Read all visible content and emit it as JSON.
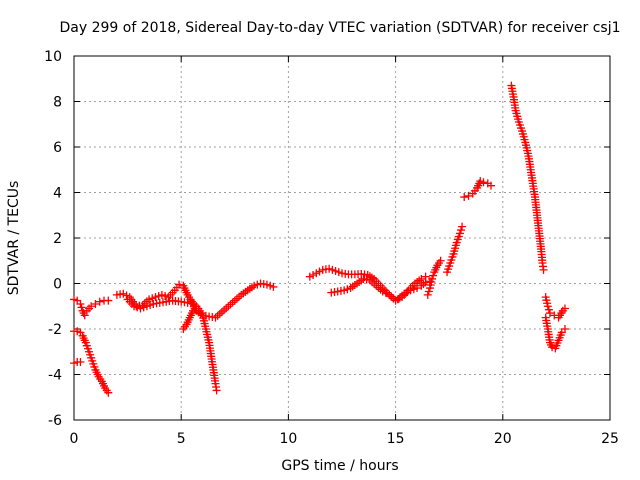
{
  "chart_data": {
    "type": "scatter",
    "title": "Day 299 of 2018, Sidereal Day-to-day VTEC variation (SDTVAR) for receiver csj1",
    "xlabel": "GPS time / hours",
    "ylabel": "SDTVAR / TECUs",
    "xlim": [
      0,
      25
    ],
    "ylim": [
      -6,
      10
    ],
    "xticks": [
      0,
      5,
      10,
      15,
      20,
      25
    ],
    "yticks": [
      -6,
      -4,
      -2,
      0,
      2,
      4,
      6,
      8,
      10
    ],
    "grid": true,
    "marker": "+",
    "color": "#ff0000",
    "series": [
      {
        "values": [
          [
            0.0,
            -0.7
          ],
          [
            0.15,
            -0.75
          ],
          [
            0.3,
            -0.9
          ],
          [
            0.4,
            -1.2
          ],
          [
            0.5,
            -1.4
          ]
        ]
      },
      {
        "values": [
          [
            0.0,
            -2.1
          ],
          [
            0.15,
            -2.1
          ],
          [
            0.3,
            -2.15
          ]
        ]
      },
      {
        "values": [
          [
            0.0,
            -3.5
          ],
          [
            0.15,
            -3.45
          ],
          [
            0.3,
            -3.45
          ]
        ]
      },
      {
        "values": [
          [
            0.4,
            -2.3
          ],
          [
            0.55,
            -2.6
          ],
          [
            0.7,
            -3.0
          ],
          [
            0.85,
            -3.4
          ],
          [
            1.0,
            -3.8
          ],
          [
            1.15,
            -4.1
          ],
          [
            1.3,
            -4.3
          ],
          [
            1.45,
            -4.6
          ],
          [
            1.6,
            -4.8
          ]
        ]
      },
      {
        "values": [
          [
            0.6,
            -1.2
          ],
          [
            0.8,
            -1.0
          ],
          [
            1.0,
            -0.9
          ],
          [
            1.2,
            -0.8
          ],
          [
            1.4,
            -0.75
          ],
          [
            1.6,
            -0.75
          ]
        ]
      },
      {
        "values": [
          [
            2.0,
            -0.5
          ],
          [
            2.3,
            -0.45
          ],
          [
            2.6,
            -0.6
          ],
          [
            2.9,
            -1.0
          ],
          [
            3.2,
            -0.95
          ],
          [
            3.5,
            -0.7
          ],
          [
            3.8,
            -0.6
          ],
          [
            4.1,
            -0.5
          ],
          [
            4.4,
            -0.6
          ],
          [
            4.7,
            -0.3
          ],
          [
            4.9,
            -0.05
          ],
          [
            5.1,
            -0.1
          ],
          [
            5.3,
            -0.5
          ],
          [
            5.5,
            -0.8
          ],
          [
            5.7,
            -1.2
          ],
          [
            6.0,
            -1.4
          ],
          [
            6.3,
            -1.45
          ],
          [
            6.6,
            -1.5
          ],
          [
            6.9,
            -1.25
          ],
          [
            7.2,
            -1.0
          ],
          [
            7.5,
            -0.75
          ],
          [
            7.8,
            -0.5
          ],
          [
            8.1,
            -0.3
          ],
          [
            8.4,
            -0.1
          ],
          [
            8.7,
            0.0
          ],
          [
            9.0,
            -0.05
          ],
          [
            9.3,
            -0.15
          ]
        ]
      },
      {
        "values": [
          [
            2.5,
            -0.7
          ],
          [
            2.8,
            -1.0
          ],
          [
            3.1,
            -1.1
          ],
          [
            3.4,
            -1.0
          ],
          [
            3.7,
            -0.9
          ],
          [
            4.0,
            -0.85
          ],
          [
            4.3,
            -0.8
          ],
          [
            4.6,
            -0.75
          ],
          [
            5.0,
            -0.8
          ],
          [
            5.3,
            -0.85
          ],
          [
            5.6,
            -0.9
          ],
          [
            5.8,
            -1.1
          ],
          [
            6.0,
            -1.4
          ],
          [
            6.15,
            -2.0
          ],
          [
            6.3,
            -2.6
          ],
          [
            6.4,
            -3.2
          ],
          [
            6.5,
            -3.8
          ],
          [
            6.6,
            -4.4
          ],
          [
            6.65,
            -4.7
          ]
        ]
      },
      {
        "values": [
          [
            5.1,
            -2.0
          ],
          [
            5.25,
            -1.8
          ],
          [
            5.4,
            -1.5
          ],
          [
            5.55,
            -1.2
          ],
          [
            5.7,
            -1.0
          ]
        ]
      },
      {
        "values": [
          [
            11.0,
            0.3
          ],
          [
            11.3,
            0.45
          ],
          [
            11.6,
            0.6
          ],
          [
            11.9,
            0.65
          ],
          [
            12.2,
            0.55
          ],
          [
            12.5,
            0.45
          ],
          [
            12.8,
            0.4
          ],
          [
            13.1,
            0.4
          ],
          [
            13.4,
            0.42
          ],
          [
            13.7,
            0.38
          ],
          [
            14.0,
            0.2
          ],
          [
            14.3,
            -0.1
          ],
          [
            14.6,
            -0.4
          ],
          [
            14.9,
            -0.65
          ],
          [
            15.1,
            -0.7
          ],
          [
            15.4,
            -0.45
          ],
          [
            15.7,
            -0.3
          ],
          [
            16.0,
            -0.2
          ],
          [
            16.2,
            -0.1
          ],
          [
            16.4,
            0.05
          ],
          [
            16.6,
            0.1
          ]
        ]
      },
      {
        "values": [
          [
            12.0,
            -0.4
          ],
          [
            12.3,
            -0.35
          ],
          [
            12.6,
            -0.3
          ],
          [
            12.9,
            -0.2
          ],
          [
            13.2,
            0.0
          ],
          [
            13.5,
            0.2
          ],
          [
            13.8,
            0.15
          ],
          [
            14.1,
            -0.1
          ],
          [
            14.4,
            -0.35
          ],
          [
            14.7,
            -0.5
          ],
          [
            15.0,
            -0.75
          ],
          [
            15.3,
            -0.6
          ],
          [
            15.6,
            -0.3
          ],
          [
            15.9,
            0.0
          ],
          [
            16.2,
            0.2
          ],
          [
            16.4,
            0.3
          ]
        ]
      },
      {
        "values": [
          [
            16.5,
            -0.5
          ],
          [
            16.6,
            -0.2
          ],
          [
            16.7,
            0.2
          ],
          [
            16.8,
            0.5
          ],
          [
            16.95,
            0.8
          ],
          [
            17.1,
            1.0
          ]
        ]
      },
      {
        "values": [
          [
            17.4,
            0.5
          ],
          [
            17.55,
            0.9
          ],
          [
            17.7,
            1.3
          ],
          [
            17.85,
            1.8
          ],
          [
            18.0,
            2.2
          ],
          [
            18.1,
            2.5
          ]
        ]
      },
      {
        "values": [
          [
            18.2,
            3.8
          ],
          [
            18.4,
            3.85
          ],
          [
            18.6,
            3.95
          ],
          [
            18.8,
            4.2
          ],
          [
            18.95,
            4.5
          ],
          [
            19.1,
            4.45
          ],
          [
            19.3,
            4.4
          ],
          [
            19.45,
            4.3
          ]
        ]
      },
      {
        "values": [
          [
            20.4,
            8.7
          ],
          [
            20.5,
            8.2
          ],
          [
            20.6,
            7.6
          ],
          [
            20.75,
            7.1
          ],
          [
            20.9,
            6.7
          ],
          [
            21.05,
            6.2
          ],
          [
            21.2,
            5.6
          ],
          [
            21.3,
            5.0
          ],
          [
            21.4,
            4.4
          ],
          [
            21.5,
            3.8
          ],
          [
            21.6,
            3.0
          ],
          [
            21.7,
            2.2
          ],
          [
            21.8,
            1.4
          ],
          [
            21.85,
            0.9
          ],
          [
            21.9,
            0.6
          ]
        ]
      },
      {
        "values": [
          [
            22.0,
            -0.6
          ],
          [
            22.1,
            -1.0
          ],
          [
            22.2,
            -1.3
          ],
          [
            22.4,
            -1.4
          ],
          [
            22.6,
            -1.5
          ],
          [
            22.8,
            -1.2
          ],
          [
            22.9,
            -1.1
          ]
        ]
      },
      {
        "values": [
          [
            22.0,
            -1.5
          ],
          [
            22.1,
            -2.0
          ],
          [
            22.2,
            -2.6
          ],
          [
            22.3,
            -2.8
          ],
          [
            22.45,
            -2.85
          ],
          [
            22.6,
            -2.5
          ],
          [
            22.75,
            -2.15
          ],
          [
            22.9,
            -2.0
          ]
        ]
      }
    ]
  }
}
